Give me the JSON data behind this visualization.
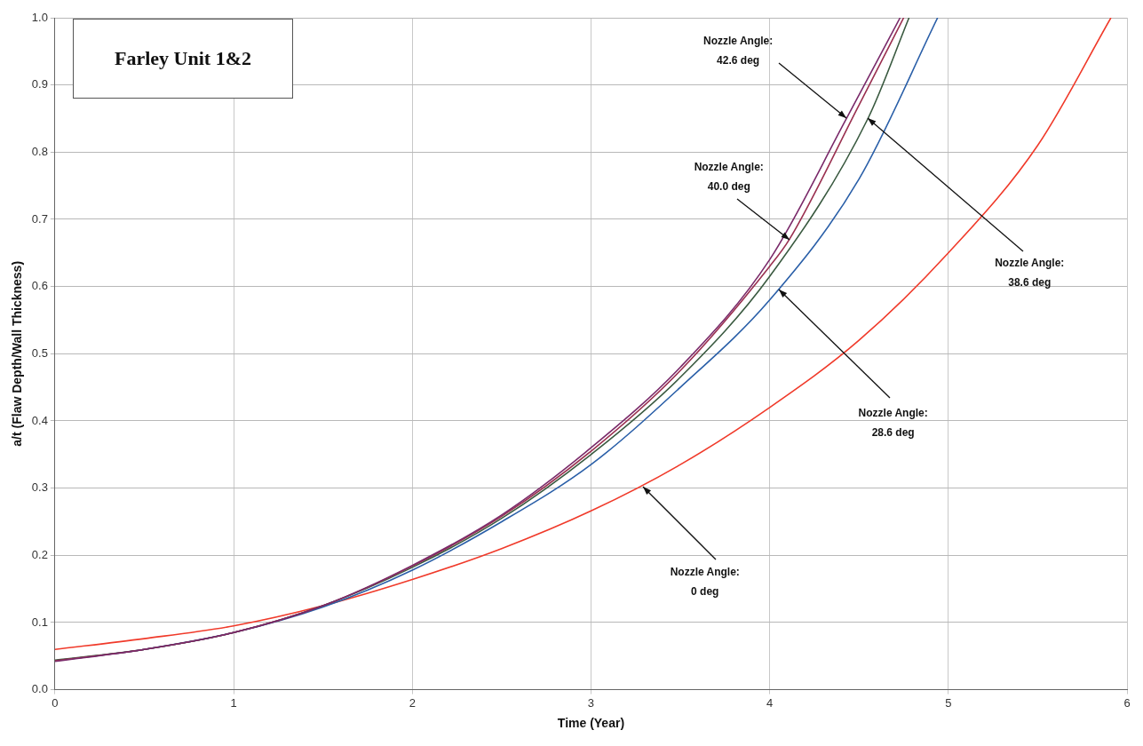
{
  "chart_data": {
    "type": "line",
    "title": "Farley Unit 1&2",
    "xlabel": "Time (Year)",
    "ylabel": "a/t (Flaw Depth/Wall Thickness)",
    "xlim": [
      0,
      6
    ],
    "xticks": [
      0,
      1,
      2,
      3,
      4,
      5,
      6
    ],
    "ylim": [
      0,
      1.0
    ],
    "yticks": [
      {
        "value": 0,
        "label": "0.0"
      },
      0.1,
      0.2,
      0.3,
      0.4,
      0.5,
      0.6,
      0.7,
      0.8,
      0.9,
      {
        "value": 1,
        "label": "1.0"
      }
    ],
    "grid": true,
    "legend": false,
    "marker": "none",
    "line_style": "solid",
    "series": [
      {
        "color": "#7a2a6a",
        "x": [
          0,
          0.5,
          1,
          1.5,
          2,
          2.5,
          3,
          3.5,
          4,
          4.43,
          4.73
        ],
        "values": [
          0.042,
          0.06,
          0.085,
          0.125,
          0.185,
          0.26,
          0.36,
          0.48,
          0.64,
          0.85,
          1.0
        ]
      },
      {
        "color": "#9a3050",
        "x": [
          0,
          0.5,
          1,
          1.5,
          2,
          2.5,
          3,
          3.5,
          4,
          4.11,
          4.5,
          4.75
        ],
        "values": [
          0.043,
          0.06,
          0.085,
          0.125,
          0.184,
          0.258,
          0.355,
          0.475,
          0.63,
          0.67,
          0.87,
          1.0
        ]
      },
      {
        "color": "#3a5a40",
        "x": [
          0,
          0.5,
          1,
          1.5,
          2,
          2.5,
          3,
          3.5,
          4,
          4.55,
          4.78
        ],
        "values": [
          0.044,
          0.06,
          0.085,
          0.125,
          0.182,
          0.255,
          0.35,
          0.465,
          0.615,
          0.85,
          1.0
        ]
      },
      {
        "color": "#2a5fa8",
        "x": [
          0,
          0.5,
          1,
          1.5,
          2,
          2.5,
          3,
          3.5,
          4,
          4.5,
          4.94
        ],
        "values": [
          0.043,
          0.06,
          0.085,
          0.123,
          0.178,
          0.25,
          0.335,
          0.45,
          0.58,
          0.76,
          1.0
        ]
      },
      {
        "color": "#f03a2a",
        "x": [
          0,
          0.5,
          1,
          1.5,
          2,
          2.5,
          3,
          3.5,
          4,
          4.5,
          5,
          5.5,
          5.91
        ],
        "values": [
          0.06,
          0.076,
          0.095,
          0.125,
          0.164,
          0.21,
          0.266,
          0.335,
          0.42,
          0.52,
          0.65,
          0.81,
          1.0
        ]
      }
    ],
    "annotations": [
      {
        "text": "Nozzle Angle: 42.6 deg",
        "x": 4.43,
        "y": 0.85
      },
      {
        "text": "Nozzle Angle: 40.0 deg",
        "x": 4.11,
        "y": 0.67
      },
      {
        "text": "Nozzle Angle: 38.6 deg",
        "x": 4.55,
        "y": 0.85
      },
      {
        "text": "Nozzle Angle: 28.6 deg",
        "x": 4.05,
        "y": 0.595
      },
      {
        "text": "Nozzle Angle: 0 deg",
        "x": 3.29,
        "y": 0.302
      }
    ]
  }
}
